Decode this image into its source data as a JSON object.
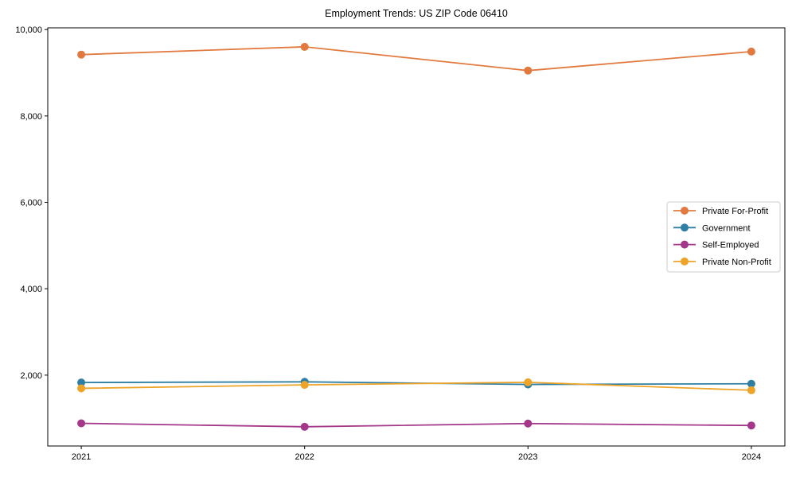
{
  "chart_data": {
    "type": "line",
    "title": "Employment Trends: US ZIP Code 06410",
    "xlabel": "",
    "ylabel": "",
    "x": [
      2021,
      2022,
      2023,
      2024
    ],
    "xtick_labels": [
      "2021",
      "2022",
      "2023",
      "2024"
    ],
    "yticks": [
      2000,
      4000,
      6000,
      8000,
      10000
    ],
    "ytick_labels": [
      "2,000",
      "4,000",
      "6,000",
      "8,000",
      "10,000"
    ],
    "ylim": [
      360,
      10040
    ],
    "xlim": [
      -0.15,
      3.15
    ],
    "grid": false,
    "legend_position": "center-right",
    "series": [
      {
        "name": "Private For-Profit",
        "color": "#E2793F",
        "values": [
          9420,
          9600,
          9050,
          9490
        ]
      },
      {
        "name": "Government",
        "color": "#2E7FA3",
        "values": [
          1830,
          1845,
          1785,
          1800
        ]
      },
      {
        "name": "Self-Employed",
        "color": "#A43789",
        "values": [
          885,
          805,
          880,
          835
        ]
      },
      {
        "name": "Private Non-Profit",
        "color": "#EDA428",
        "values": [
          1695,
          1775,
          1835,
          1650
        ]
      }
    ]
  }
}
